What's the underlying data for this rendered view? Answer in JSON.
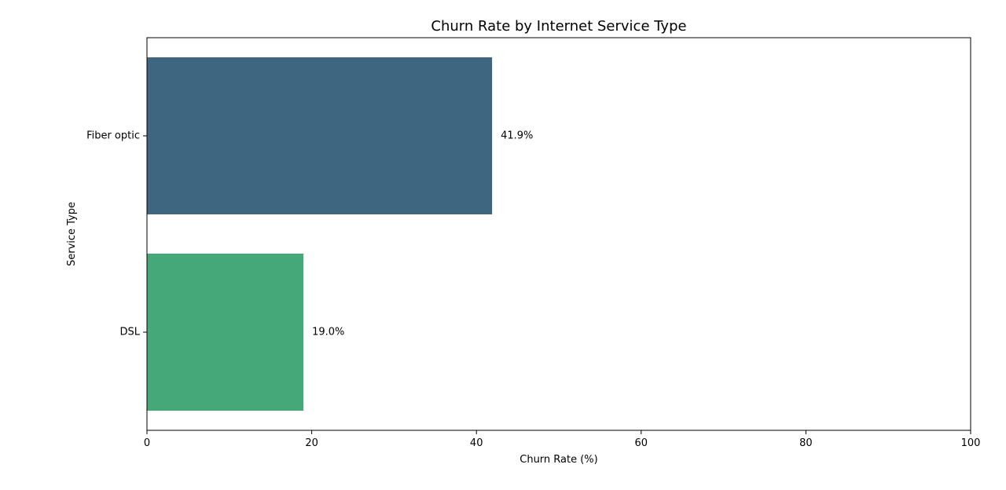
{
  "chart_data": {
    "type": "bar",
    "orientation": "horizontal",
    "title": "Churn Rate by Internet Service Type",
    "xlabel": "Churn Rate (%)",
    "ylabel": "Service Type",
    "categories": [
      "Fiber optic",
      "DSL"
    ],
    "values": [
      41.9,
      19.0
    ],
    "data_labels": [
      "41.9%",
      "19.0%"
    ],
    "bar_colors": [
      "#3e6680",
      "#45a878"
    ],
    "xlim": [
      0,
      100
    ],
    "xticks": [
      0,
      20,
      40,
      60,
      80,
      100
    ],
    "xtick_labels": [
      "0",
      "20",
      "40",
      "60",
      "80",
      "100"
    ],
    "grid": false,
    "legend": "none"
  }
}
